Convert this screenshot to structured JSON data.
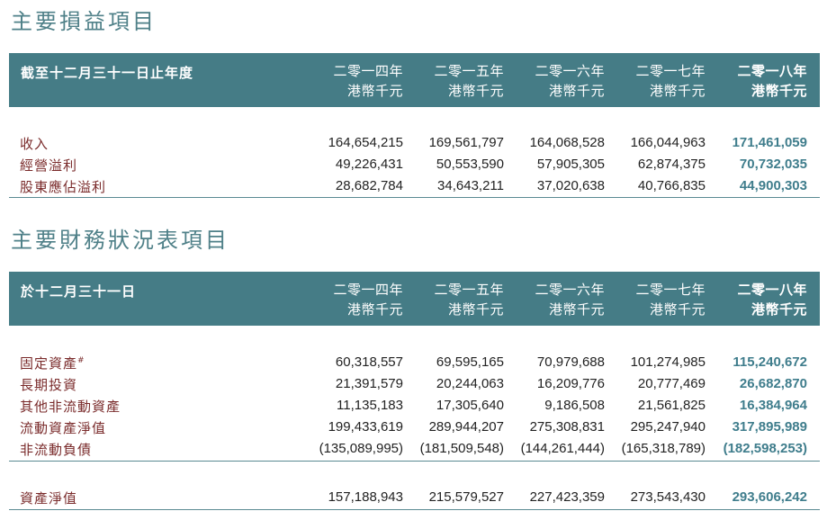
{
  "income": {
    "title": "主要損益項目",
    "header": {
      "label": "截至十二月三十一日止年度",
      "years": [
        "二零一四年",
        "二零一五年",
        "二零一六年",
        "二零一七年",
        "二零一八年"
      ],
      "unit": "港幣千元"
    },
    "rows": [
      {
        "label": "收入",
        "values": [
          "164,654,215",
          "169,561,797",
          "164,068,528",
          "166,044,963",
          "171,461,059"
        ]
      },
      {
        "label": "經營溢利",
        "values": [
          "49,226,431",
          "50,553,590",
          "57,905,305",
          "62,874,375",
          "70,732,035"
        ]
      },
      {
        "label": "股東應佔溢利",
        "values": [
          "28,682,784",
          "34,643,211",
          "37,020,638",
          "40,766,835",
          "44,900,303"
        ]
      }
    ]
  },
  "balance": {
    "title": "主要財務狀況表項目",
    "header": {
      "label": "於十二月三十一日",
      "years": [
        "二零一四年",
        "二零一五年",
        "二零一六年",
        "二零一七年",
        "二零一八年"
      ],
      "unit": "港幣千元"
    },
    "rows": [
      {
        "label": "固定資產",
        "note": "#",
        "values": [
          "60,318,557",
          "69,595,165",
          "70,979,688",
          "101,274,985",
          "115,240,672"
        ]
      },
      {
        "label": "長期投資",
        "values": [
          "21,391,579",
          "20,244,063",
          "16,209,776",
          "20,777,469",
          "26,682,870"
        ]
      },
      {
        "label": "其他非流動資產",
        "values": [
          "11,135,183",
          "17,305,640",
          "9,186,508",
          "21,561,825",
          "16,384,964"
        ]
      },
      {
        "label": "流動資產淨值",
        "values": [
          "199,433,619",
          "289,944,207",
          "275,308,831",
          "295,247,940",
          "317,895,989"
        ]
      },
      {
        "label": "非流動負債",
        "values": [
          "(135,089,995)",
          "(181,509,548)",
          "(144,261,444)",
          "(165,318,789)",
          "(182,598,253)"
        ]
      }
    ],
    "total": {
      "label": "資產淨值",
      "values": [
        "157,188,943",
        "215,579,527",
        "227,423,359",
        "273,543,430",
        "293,606,242"
      ]
    }
  }
}
